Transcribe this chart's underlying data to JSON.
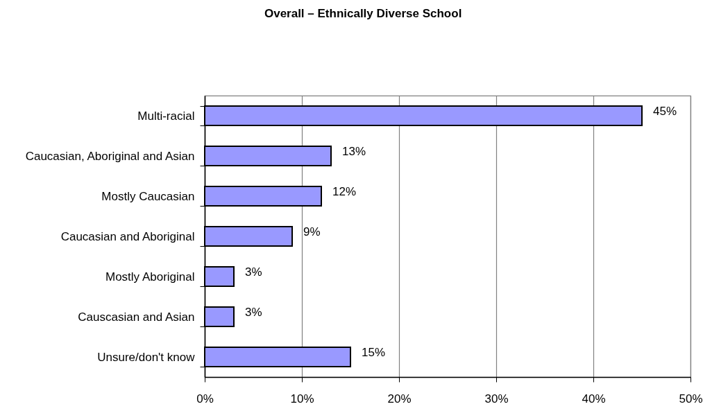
{
  "chart_data": {
    "type": "bar",
    "orientation": "horizontal",
    "title": "Overall – Ethnically Diverse School",
    "categories": [
      "Multi-racial",
      "Caucasian, Aboriginal and Asian",
      "Mostly Caucasian",
      "Caucasian and Aboriginal",
      "Mostly Aboriginal",
      "Causcasian and Asian",
      "Unsure/don't know"
    ],
    "values": [
      45,
      13,
      12,
      9,
      3,
      3,
      15
    ],
    "value_labels": [
      "45%",
      "13%",
      "12%",
      "9%",
      "3%",
      "3%",
      "15%"
    ],
    "color": "#9999ff",
    "xlim": [
      0,
      50
    ],
    "xticks": [
      {
        "value": 0,
        "label": "0%"
      },
      {
        "value": 10,
        "label": "10%"
      },
      {
        "value": 20,
        "label": "20%"
      },
      {
        "value": 30,
        "label": "30%"
      },
      {
        "value": 40,
        "label": "40%"
      },
      {
        "value": 50,
        "label": "50%"
      }
    ],
    "grid": "x"
  }
}
